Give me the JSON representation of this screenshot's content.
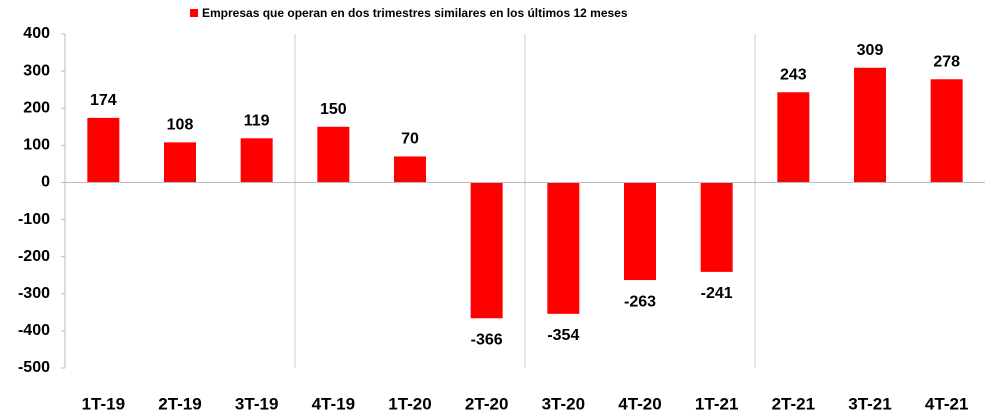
{
  "chart_data": {
    "type": "bar",
    "categories": [
      "1T-19",
      "2T-19",
      "3T-19",
      "4T-19",
      "1T-20",
      "2T-20",
      "3T-20",
      "4T-20",
      "1T-21",
      "2T-21",
      "3T-21",
      "4T-21"
    ],
    "series": [
      {
        "name": "Empresas que operan en dos trimestres similares en los últimos 12 meses",
        "color": "#ff0000",
        "values": [
          174,
          108,
          119,
          150,
          70,
          -366,
          -354,
          -263,
          -241,
          243,
          309,
          278
        ]
      }
    ],
    "ylim": [
      -500,
      400
    ],
    "yticks": [
      -500,
      -400,
      -300,
      -200,
      -100,
      0,
      100,
      200,
      300,
      400
    ],
    "legend": "top",
    "grid": false
  }
}
